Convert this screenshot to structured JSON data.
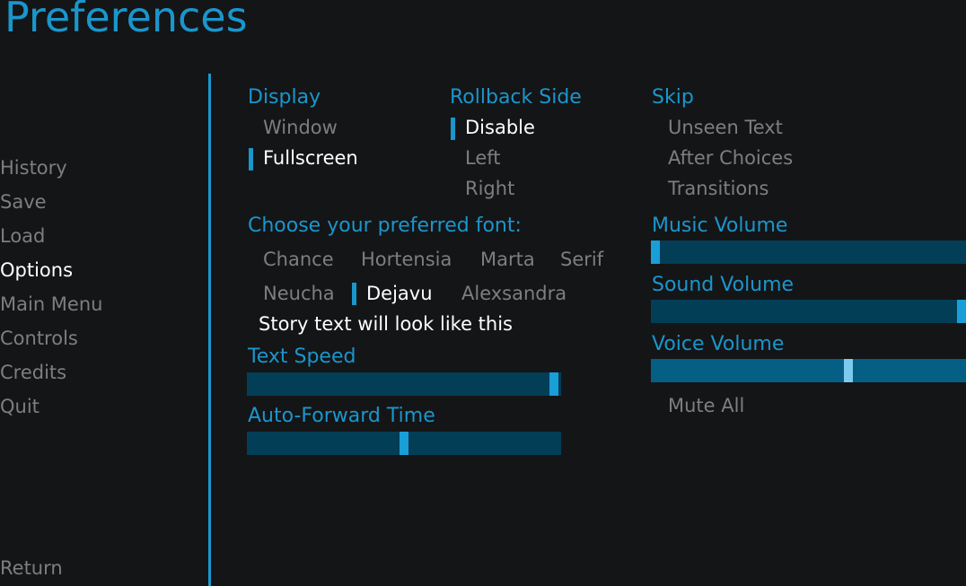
{
  "title": "Preferences",
  "nav": {
    "items": [
      "History",
      "Save",
      "Load",
      "Options",
      "Main Menu",
      "Controls",
      "Credits",
      "Quit"
    ],
    "selected": "Options",
    "return": "Return"
  },
  "display": {
    "label": "Display",
    "options": [
      "Window",
      "Fullscreen"
    ],
    "selected": "Fullscreen"
  },
  "rollback": {
    "label": "Rollback Side",
    "options": [
      "Disable",
      "Left",
      "Right"
    ],
    "selected": "Disable"
  },
  "skip": {
    "label": "Skip",
    "options": [
      "Unseen Text",
      "After Choices",
      "Transitions"
    ]
  },
  "font": {
    "label": "Choose your preferred font:",
    "options": [
      "Chance",
      "Hortensia",
      "Marta",
      "Serif",
      "Neucha",
      "Dejavu",
      "Alexsandra"
    ],
    "selected": "Dejavu",
    "preview": "Story text will look like this"
  },
  "text_speed": {
    "label": "Text Speed",
    "value": 0.99
  },
  "auto_forward": {
    "label": "Auto-Forward Time",
    "value": 0.5
  },
  "music_volume": {
    "label": "Music Volume",
    "value": 0.0
  },
  "sound_volume": {
    "label": "Sound Volume",
    "value": 1.0
  },
  "voice_volume": {
    "label": "Voice Volume",
    "value": 0.63
  },
  "mute_all": "Mute All",
  "colors": {
    "accent": "#1a96cc",
    "background": "#141517",
    "bar": "#033e57",
    "text_inactive": "#7e7e7e",
    "text_selected": "#ffffff"
  }
}
